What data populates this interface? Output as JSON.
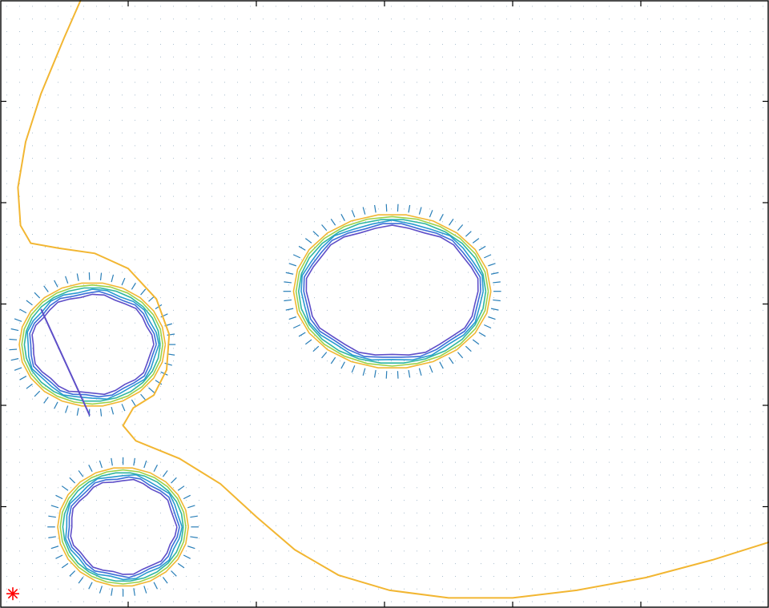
{
  "chart_data": {
    "type": "contour",
    "title": "",
    "xlabel": "",
    "ylabel": "",
    "xlim": [
      0,
      30
    ],
    "ylim": [
      0,
      24
    ],
    "grid": false,
    "xticks": 6,
    "yticks": 6,
    "tick_labels_visible": false,
    "start_marker": {
      "x": 0.5,
      "y": 0.5,
      "symbol": "*",
      "color": "#ff0000"
    },
    "obstacles": [
      {
        "cx": 15.3,
        "cy": 12.5,
        "rx": 3.6,
        "ry": 2.8
      },
      {
        "cx": 3.6,
        "cy": 10.4,
        "rx": 2.6,
        "ry": 2.2
      },
      {
        "cx": 4.8,
        "cy": 3.2,
        "rx": 2.3,
        "ry": 2.1
      }
    ],
    "contour_levels": [
      {
        "offset": 0.25,
        "color": "#f2b632"
      },
      {
        "offset": 0.15,
        "color": "#9bd24a"
      },
      {
        "offset": 0.05,
        "color": "#2fb6a0"
      },
      {
        "offset": -0.05,
        "color": "#2a9ad0"
      },
      {
        "offset": -0.15,
        "color": "#3c6fd8"
      },
      {
        "offset": -0.25,
        "color": "#5e4ec8"
      }
    ],
    "boundary_curve": {
      "color": "#f2b632",
      "points": [
        [
          3.15,
          24
        ],
        [
          2.5,
          22.5
        ],
        [
          1.6,
          20.3
        ],
        [
          1.0,
          18.4
        ],
        [
          0.7,
          16.6
        ],
        [
          0.8,
          15.1
        ],
        [
          1.2,
          14.4
        ],
        [
          2.3,
          14.2
        ],
        [
          3.7,
          14.0
        ],
        [
          5.0,
          13.4
        ],
        [
          6.1,
          12.2
        ],
        [
          6.6,
          10.8
        ],
        [
          6.5,
          9.4
        ],
        [
          6.0,
          8.4
        ],
        [
          5.2,
          7.9
        ],
        [
          4.8,
          7.2
        ],
        [
          5.3,
          6.6
        ],
        [
          7.0,
          5.9
        ],
        [
          8.6,
          4.9
        ],
        [
          10.0,
          3.6
        ],
        [
          11.5,
          2.3
        ],
        [
          13.2,
          1.3
        ],
        [
          15.2,
          0.7
        ],
        [
          17.5,
          0.4
        ],
        [
          20.0,
          0.4
        ],
        [
          22.5,
          0.7
        ],
        [
          25.2,
          1.2
        ],
        [
          27.8,
          1.9
        ],
        [
          30.0,
          2.6
        ]
      ]
    },
    "line_segment": {
      "x": [
        1.6,
        3.5
      ],
      "y": [
        11.8,
        7.6
      ],
      "color": "#5e4ec8"
    },
    "quiver_spacing": 0.5,
    "arrow_color": "#2a7fb8"
  }
}
